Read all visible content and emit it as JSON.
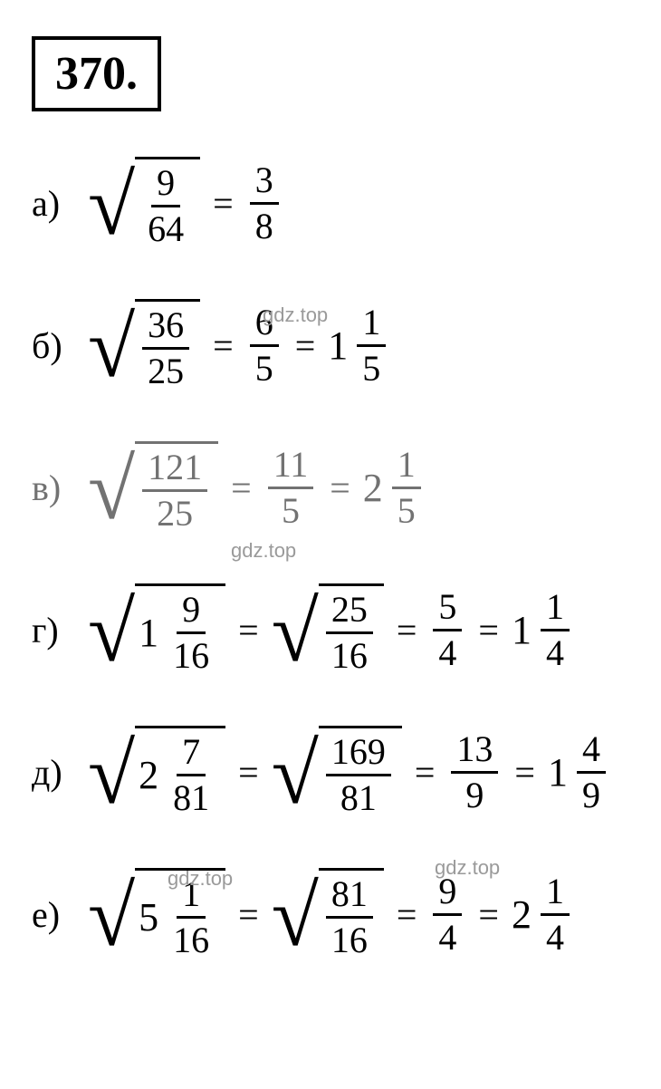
{
  "problem_number": "370.",
  "watermark_text": "gdz.top",
  "colors": {
    "text": "#000000",
    "background": "#ffffff",
    "watermark": "#9a9a9a"
  },
  "typography": {
    "equation_fontsize": 40,
    "number_box_fontsize": 52,
    "font_family": "Times New Roman"
  },
  "items": [
    {
      "label": "а)",
      "steps": [
        {
          "type": "sqrt_frac",
          "num": "9",
          "den": "64"
        },
        {
          "type": "frac",
          "num": "3",
          "den": "8"
        }
      ]
    },
    {
      "label": "б)",
      "steps": [
        {
          "type": "sqrt_frac",
          "num": "36",
          "den": "25"
        },
        {
          "type": "frac",
          "num": "6",
          "den": "5"
        },
        {
          "type": "mixed",
          "whole": "1",
          "num": "1",
          "den": "5"
        }
      ]
    },
    {
      "label": "в)",
      "faded": true,
      "steps": [
        {
          "type": "sqrt_frac",
          "num": "121",
          "den": "25"
        },
        {
          "type": "frac",
          "num": "11",
          "den": "5"
        },
        {
          "type": "mixed",
          "whole": "2",
          "num": "1",
          "den": "5"
        }
      ]
    },
    {
      "label": "г)",
      "steps": [
        {
          "type": "sqrt_mixed",
          "whole": "1",
          "num": "9",
          "den": "16"
        },
        {
          "type": "sqrt_frac",
          "num": "25",
          "den": "16"
        },
        {
          "type": "frac",
          "num": "5",
          "den": "4"
        },
        {
          "type": "mixed",
          "whole": "1",
          "num": "1",
          "den": "4"
        }
      ]
    },
    {
      "label": "д)",
      "steps": [
        {
          "type": "sqrt_mixed",
          "whole": "2",
          "num": "7",
          "den": "81"
        },
        {
          "type": "sqrt_frac",
          "num": "169",
          "den": "81"
        },
        {
          "type": "frac",
          "num": "13",
          "den": "9"
        },
        {
          "type": "mixed",
          "whole": "1",
          "num": "4",
          "den": "9"
        }
      ]
    },
    {
      "label": "е)",
      "steps": [
        {
          "type": "sqrt_mixed",
          "whole": "5",
          "num": "1",
          "den": "16"
        },
        {
          "type": "sqrt_frac",
          "num": "81",
          "den": "16"
        },
        {
          "type": "frac",
          "num": "9",
          "den": "4"
        },
        {
          "type": "mixed",
          "whole": "2",
          "num": "1",
          "den": "4"
        }
      ]
    }
  ]
}
